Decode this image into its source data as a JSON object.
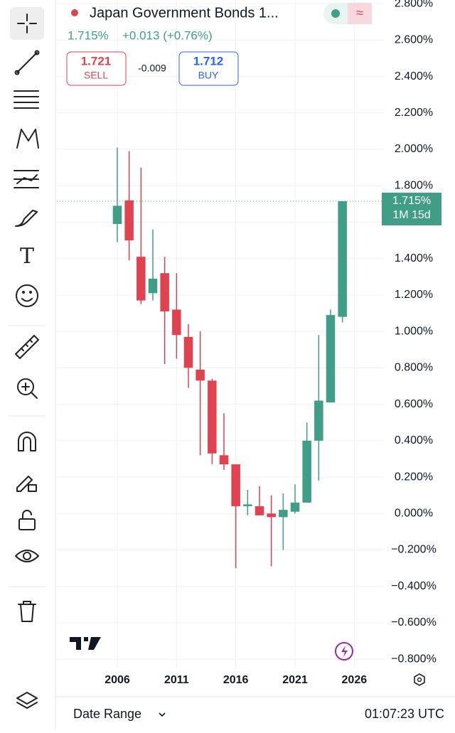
{
  "header": {
    "title": "Japan Government Bonds 1...",
    "price": "1.715%",
    "change": "+0.013 (+0.76%)",
    "sell": {
      "price": "1.721",
      "label": "SELL"
    },
    "spread": "-0.009",
    "buy": {
      "price": "1.712",
      "label": "BUY"
    }
  },
  "chart_data": {
    "type": "candlestick",
    "x": [
      2006,
      2007,
      2008,
      2009,
      2010,
      2011,
      2012,
      2013,
      2014,
      2015,
      2016,
      2017,
      2018,
      2019,
      2020,
      2021,
      2022,
      2023,
      2024,
      2025
    ],
    "open": [
      1.59,
      1.72,
      1.41,
      1.21,
      1.32,
      1.12,
      0.97,
      0.79,
      0.73,
      0.32,
      0.27,
      0.04,
      0.04,
      0.0,
      -0.02,
      0.01,
      0.06,
      0.4,
      0.61,
      1.08
    ],
    "high": [
      2.01,
      1.99,
      1.9,
      1.56,
      1.41,
      1.32,
      1.04,
      1.0,
      0.74,
      0.55,
      0.27,
      0.13,
      0.15,
      0.1,
      0.11,
      0.16,
      0.5,
      0.98,
      1.12,
      1.715
    ],
    "low": [
      1.49,
      1.39,
      1.15,
      1.17,
      0.82,
      0.85,
      0.69,
      0.32,
      0.27,
      0.24,
      -0.3,
      -0.01,
      -0.01,
      -0.29,
      -0.2,
      0.0,
      0.06,
      0.18,
      0.61,
      1.05
    ],
    "close": [
      1.69,
      1.5,
      1.17,
      1.29,
      1.11,
      0.98,
      0.8,
      0.73,
      0.33,
      0.27,
      0.04,
      0.05,
      -0.01,
      -0.02,
      0.02,
      0.06,
      0.4,
      0.62,
      1.09,
      1.715
    ],
    "up_color": "#3f9e85",
    "down_color": "#e0434f",
    "xlim": [
      2000.9,
      2028.5
    ],
    "xticks": [
      2006,
      2011,
      2016,
      2021,
      2026
    ],
    "ylim": [
      -0.85,
      2.82
    ],
    "yticks": [
      {
        "value": 2.8,
        "label": "2.800%"
      },
      {
        "value": 2.6,
        "label": "2.600%"
      },
      {
        "value": 2.4,
        "label": "2.400%"
      },
      {
        "value": 2.2,
        "label": "2.200%"
      },
      {
        "value": 2.0,
        "label": "2.000%"
      },
      {
        "value": 1.8,
        "label": "1.800%"
      },
      {
        "value": 1.6,
        "label": "1.600%"
      },
      {
        "value": 1.4,
        "label": "1.400%"
      },
      {
        "value": 1.2,
        "label": "1.200%"
      },
      {
        "value": 1.0,
        "label": "1.000%"
      },
      {
        "value": 0.8,
        "label": "0.800%"
      },
      {
        "value": 0.6,
        "label": "0.600%"
      },
      {
        "value": 0.4,
        "label": "0.400%"
      },
      {
        "value": 0.2,
        "label": "0.200%"
      },
      {
        "value": 0,
        "label": "0.000%"
      },
      {
        "value": -0.2,
        "label": "−0.200%"
      },
      {
        "value": -0.4,
        "label": "−0.400%"
      },
      {
        "value": -0.6,
        "label": "−0.600%"
      },
      {
        "value": -0.8,
        "label": "−0.800%"
      }
    ],
    "grid": true,
    "last_price": {
      "value": 1.715,
      "label": "1.715%"
    },
    "countdown": "1M 15d"
  },
  "footer": {
    "date_range": "Date Range",
    "time": "01:07:23 UTC"
  }
}
